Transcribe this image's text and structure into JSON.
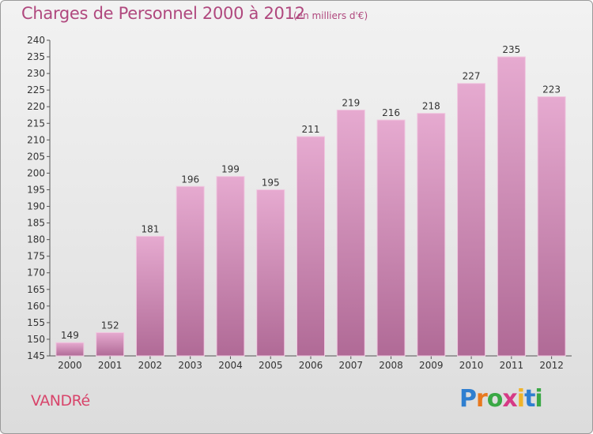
{
  "title": "Charges de Personnel 2000 à 2012",
  "subtitle": "(en milliers d'€)",
  "commune": "VANDRé",
  "logo": [
    "P",
    "r",
    "o",
    "x",
    "i",
    "t",
    "i"
  ],
  "colors": {
    "bar_top": "#e3a6cc",
    "bar_bottom": "#b06a96",
    "title": "#b0487e",
    "commune": "#d8456b"
  },
  "chart_data": {
    "type": "bar",
    "categories": [
      "2000",
      "2001",
      "2002",
      "2003",
      "2004",
      "2005",
      "2006",
      "2007",
      "2008",
      "2009",
      "2010",
      "2011",
      "2012"
    ],
    "values": [
      149,
      152,
      181,
      196,
      199,
      195,
      211,
      219,
      216,
      218,
      227,
      235,
      223
    ],
    "ylim": [
      145,
      240
    ],
    "yticks": [
      145,
      150,
      155,
      160,
      165,
      170,
      175,
      180,
      185,
      190,
      195,
      200,
      205,
      210,
      215,
      220,
      225,
      230,
      235,
      240
    ],
    "grid": false
  }
}
